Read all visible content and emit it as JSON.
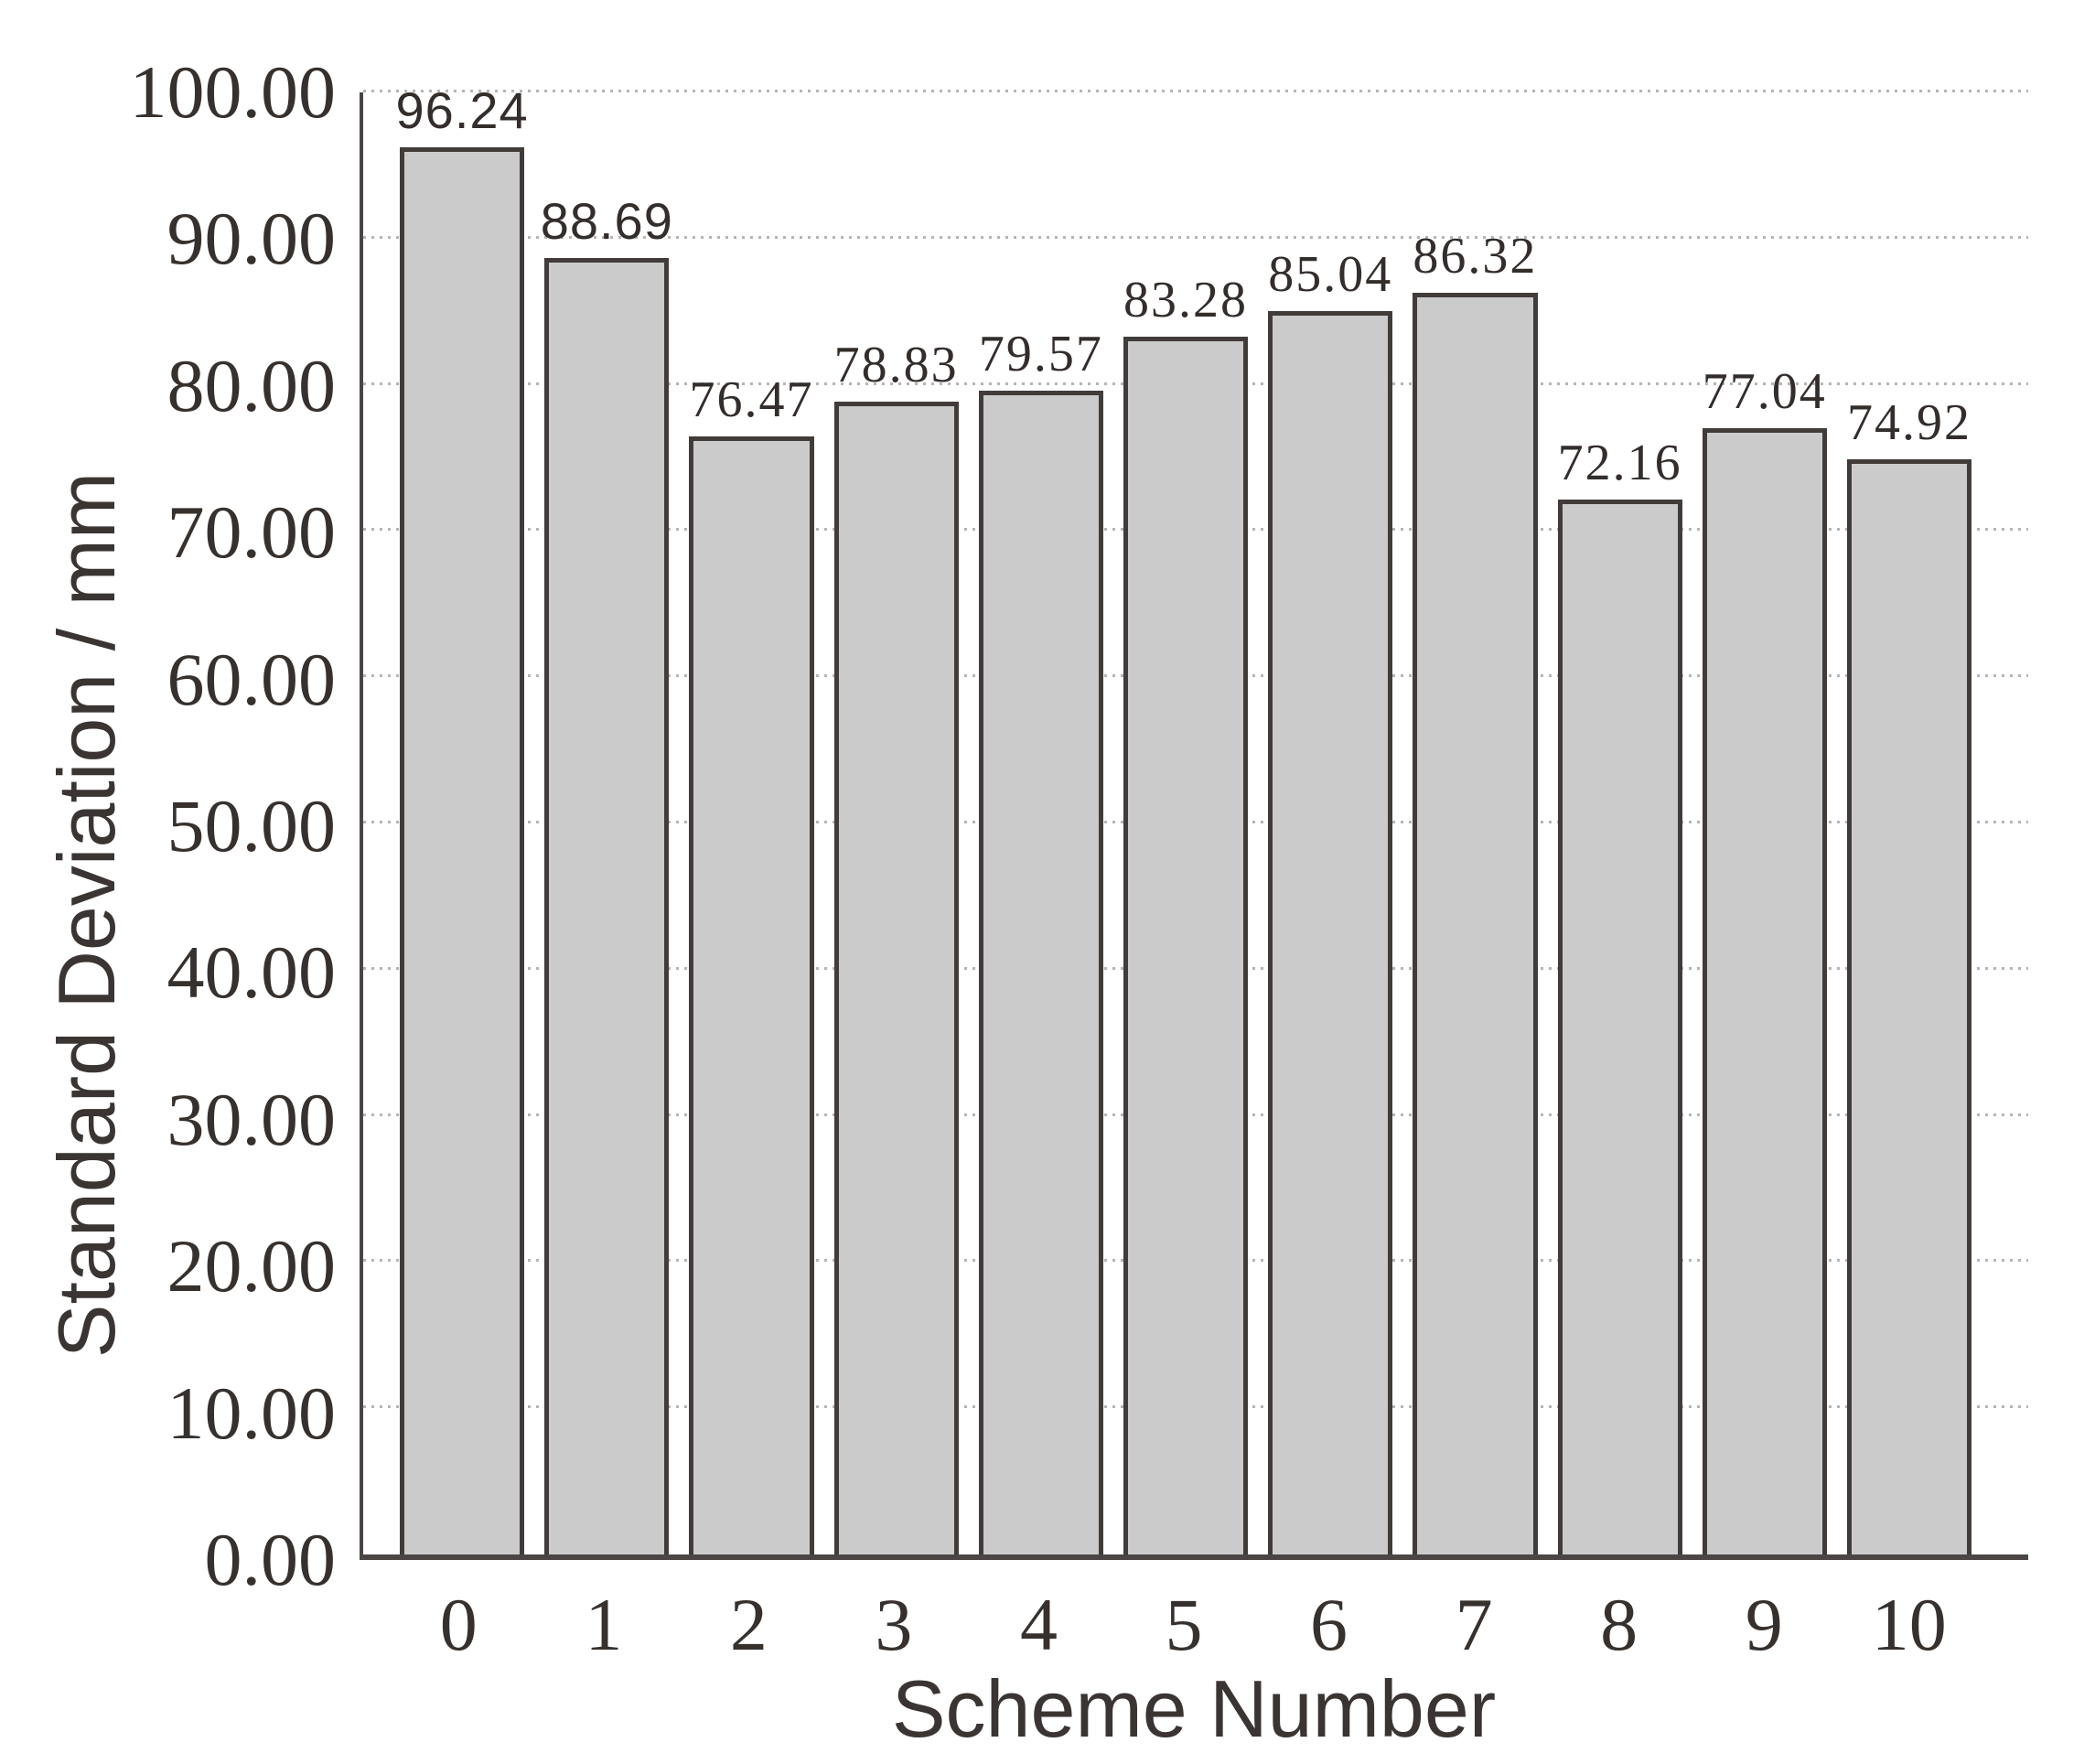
{
  "chart_data": {
    "type": "bar",
    "title": "",
    "xlabel": "Scheme Number",
    "ylabel": "Standard Deviation / mm",
    "categories": [
      "0",
      "1",
      "2",
      "3",
      "4",
      "5",
      "6",
      "7",
      "8",
      "9",
      "10"
    ],
    "values": [
      96.24,
      88.69,
      76.47,
      78.83,
      79.57,
      83.28,
      85.04,
      86.32,
      72.16,
      77.04,
      74.92
    ],
    "value_labels": [
      "96.24",
      "88.69",
      "76.47",
      "78.83",
      "79.57",
      "83.28",
      "85.04",
      "86.32",
      "72.16",
      "77.04",
      "74.92"
    ],
    "ylim": [
      0,
      100
    ],
    "ytick_step": 10,
    "yticks": [
      "0.00",
      "10.00",
      "20.00",
      "30.00",
      "40.00",
      "50.00",
      "60.00",
      "70.00",
      "80.00",
      "90.00",
      "100.00"
    ],
    "grid": "horizontal-dotted",
    "legend": "none",
    "colors": {
      "bar_fill": "#cbcbcb",
      "bar_border": "#413c3a",
      "axis": "#4b4644",
      "gridline": "#b5b5b5",
      "text": "#37312e"
    }
  }
}
